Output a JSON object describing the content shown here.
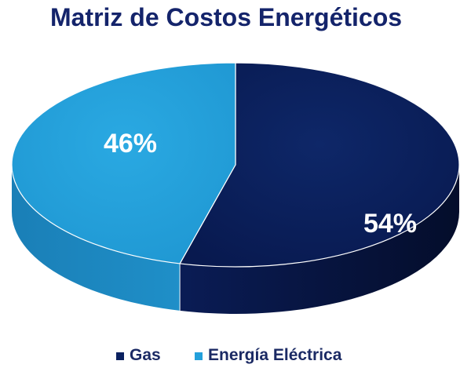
{
  "chart_data": {
    "type": "pie",
    "title": "Matriz de Costos Energéticos",
    "slices": [
      {
        "name": "Gas",
        "value": 54,
        "label": "54%",
        "color": "#0b2160"
      },
      {
        "name": "Energía Eléctrica",
        "value": 46,
        "label": "46%",
        "color": "#23a0db"
      }
    ],
    "style": "3d",
    "legend_position": "bottom"
  },
  "colors": {
    "title": "#14246b",
    "legend_text": "#1b2a64",
    "gas_side": "#06143e",
    "electric_side": "#1b86bd"
  }
}
